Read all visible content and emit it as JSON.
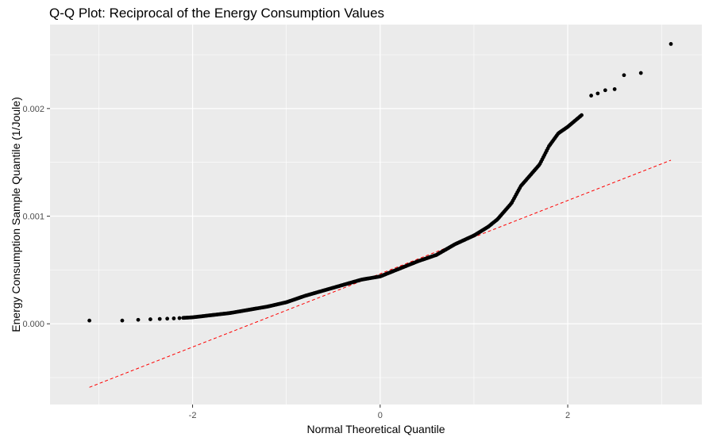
{
  "chart_data": {
    "type": "scatter",
    "title": "Q-Q Plot: Reciprocal of the Energy Consumption Values",
    "xlabel": "Normal Theoretical Quantile",
    "ylabel": "Energy Consumption Sample Quantile (1/Joule)",
    "xlim": [
      -3.52,
      3.43
    ],
    "ylim": [
      -0.00075,
      0.00278
    ],
    "x_ticks": [
      -2,
      0,
      2
    ],
    "x_tick_labels": [
      "-2",
      "0",
      "2"
    ],
    "y_ticks": [
      0,
      0.001,
      0.002
    ],
    "y_tick_labels": [
      "0.000",
      "0.001",
      "0.002"
    ],
    "grid": true,
    "legend": "none",
    "colors": {
      "panel": "#ebebeb",
      "grid": "#ffffff",
      "points": "#000000",
      "reference_line": "#ff0000"
    },
    "reference_line": {
      "style": "dashed",
      "x": [
        -3.1,
        3.1
      ],
      "y": [
        -0.00059,
        0.00152
      ]
    },
    "curve_knots": [
      [
        -3.1,
        3e-05
      ],
      [
        -2.75,
        3e-05
      ],
      [
        -2.5,
        4e-05
      ],
      [
        -2.2,
        5e-05
      ],
      [
        -2.0,
        6e-05
      ],
      [
        -1.8,
        8e-05
      ],
      [
        -1.6,
        0.0001
      ],
      [
        -1.4,
        0.00013
      ],
      [
        -1.2,
        0.00016
      ],
      [
        -1.0,
        0.0002
      ],
      [
        -0.8,
        0.00026
      ],
      [
        -0.6,
        0.00031
      ],
      [
        -0.4,
        0.00036
      ],
      [
        -0.2,
        0.00041
      ],
      [
        0.0,
        0.00044
      ],
      [
        0.2,
        0.00051
      ],
      [
        0.4,
        0.00058
      ],
      [
        0.6,
        0.00064
      ],
      [
        0.8,
        0.00074
      ],
      [
        1.0,
        0.00082
      ],
      [
        1.15,
        0.0009
      ],
      [
        1.25,
        0.00097
      ],
      [
        1.4,
        0.00112
      ],
      [
        1.5,
        0.00128
      ],
      [
        1.6,
        0.00138
      ],
      [
        1.7,
        0.00148
      ],
      [
        1.8,
        0.00165
      ],
      [
        1.9,
        0.00177
      ],
      [
        2.0,
        0.00183
      ],
      [
        2.15,
        0.00194
      ]
    ],
    "tail_points": [
      [
        2.25,
        0.00212
      ],
      [
        2.32,
        0.00214
      ],
      [
        2.4,
        0.00217
      ],
      [
        2.5,
        0.00218
      ],
      [
        2.6,
        0.00231
      ],
      [
        2.78,
        0.00233
      ],
      [
        3.1,
        0.0026
      ]
    ]
  }
}
